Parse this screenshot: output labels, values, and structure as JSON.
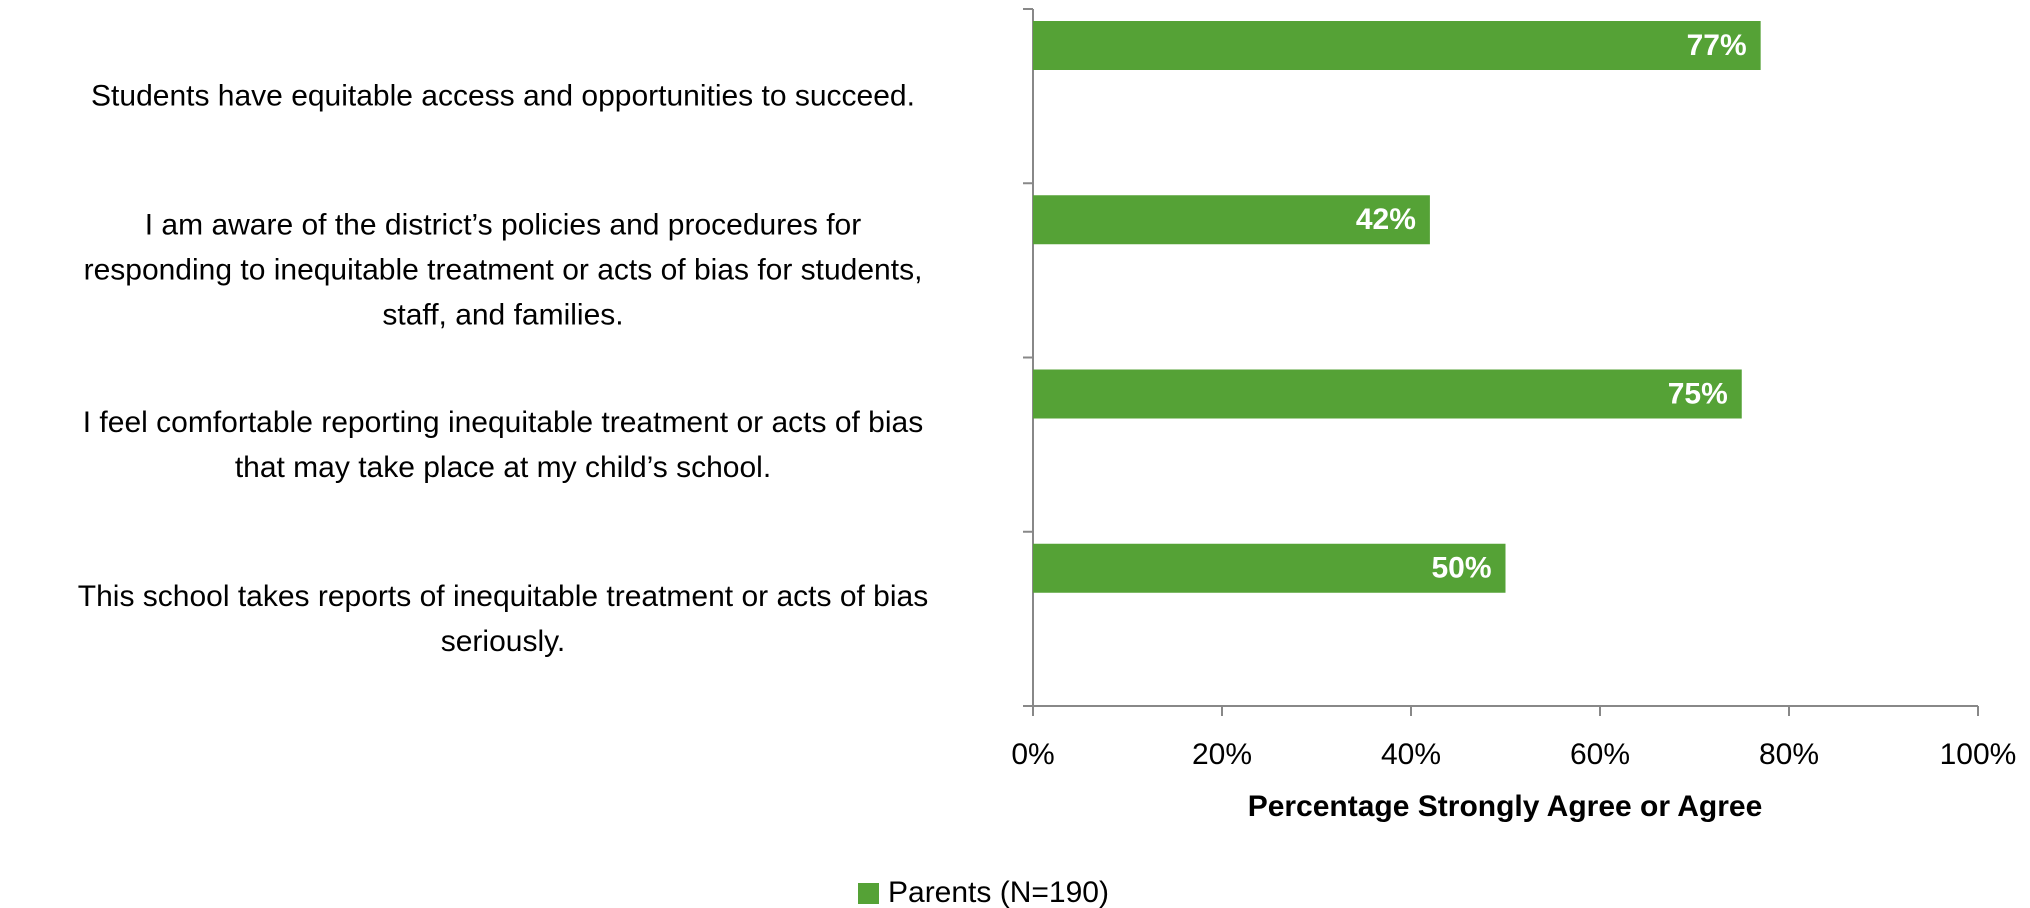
{
  "chart_data": {
    "type": "hbar",
    "categories": [
      "Students have equitable access and opportunities to succeed.",
      "I am aware of the district’s policies and procedures for\nresponding to inequitable treatment or acts of bias for students,\nstaff, and families.",
      "I feel comfortable reporting inequitable treatment or acts of bias\nthat may take place at my child’s school.",
      "This school takes reports of inequitable treatment or acts of bias\nseriously."
    ],
    "series": [
      {
        "name": "Parents (N=190)",
        "color": "#55a236",
        "values": [
          77,
          42,
          75,
          50
        ],
        "value_labels": [
          "77%",
          "42%",
          "75%",
          "50%"
        ]
      }
    ],
    "xlim": [
      0,
      100
    ],
    "xticks": [
      {
        "value": 0,
        "label": "0%"
      },
      {
        "value": 20,
        "label": "20%"
      },
      {
        "value": 40,
        "label": "40%"
      },
      {
        "value": 60,
        "label": "60%"
      },
      {
        "value": 80,
        "label": "80%"
      },
      {
        "value": 100,
        "label": "100%"
      }
    ],
    "xlabel": "Percentage Strongly Agree or Agree",
    "legend": "bottom"
  }
}
